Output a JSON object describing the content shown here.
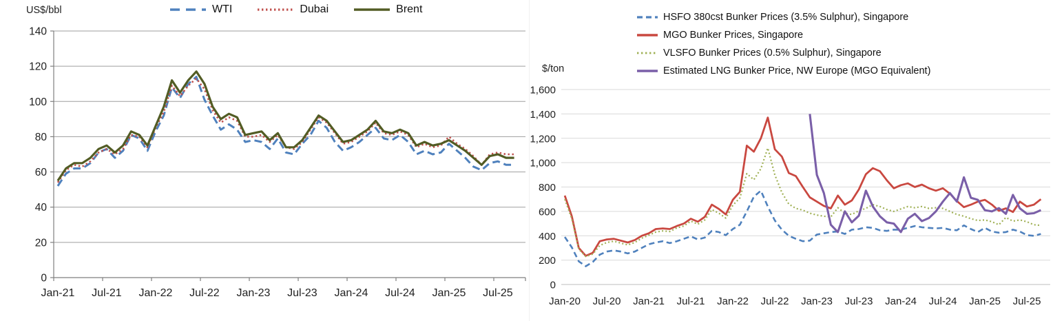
{
  "left_chart": {
    "y_axis_title": "US$/bbl",
    "legend_labels": [
      "WTI",
      "Dubai",
      "Brent"
    ]
  },
  "right_chart": {
    "y_axis_title": "$/ton",
    "legend_labels": [
      "HSFO 380cst Bunker Prices (3.5% Sulphur), Singapore",
      "MGO Bunker Prices, Singapore",
      "VLSFO Bunker Prices (0.5% Sulphur), Singapore",
      "Estimated LNG Bunker Price, NW Europe (MGO Equivalent)"
    ]
  },
  "chart_data": [
    {
      "type": "line",
      "title": "",
      "y_axis_title": "US$/bbl",
      "ylim": [
        0,
        140
      ],
      "y_tick_labels": [
        "0",
        "20",
        "40",
        "60",
        "80",
        "100",
        "120",
        "140"
      ],
      "x_tick_labels": [
        "Jan-21",
        "Jul-21",
        "Jan-22",
        "Jul-22",
        "Jan-23",
        "Jul-23",
        "Jan-24",
        "Jul-24",
        "Jan-25",
        "Jul-25"
      ],
      "x_start_month": "Jan-21",
      "x_end_month": "Sep-25",
      "grid": true,
      "legend_position": "top-center",
      "series": [
        {
          "name": "WTI",
          "color": "#4F81BD",
          "style": "dashed",
          "values": [
            52,
            59,
            62,
            62,
            65,
            71,
            73,
            68,
            72,
            81,
            79,
            72,
            83,
            92,
            108,
            102,
            110,
            114,
            101,
            92,
            84,
            87,
            84,
            77,
            78,
            77,
            73,
            79,
            71,
            70,
            76,
            81,
            89,
            85,
            77,
            72,
            74,
            77,
            81,
            85,
            79,
            78,
            81,
            77,
            70,
            72,
            70,
            71,
            76,
            72,
            68,
            63,
            61,
            65,
            66,
            64,
            64
          ]
        },
        {
          "name": "Dubai",
          "color": "#C0504D",
          "style": "dotted",
          "values": [
            54,
            61,
            64,
            63,
            66,
            71,
            73,
            70,
            73,
            81,
            80,
            74,
            85,
            94,
            109,
            103,
            109,
            113,
            107,
            95,
            88,
            91,
            89,
            80,
            80,
            81,
            77,
            81,
            74,
            73,
            77,
            84,
            91,
            88,
            82,
            76,
            77,
            80,
            83,
            88,
            82,
            81,
            83,
            81,
            74,
            76,
            74,
            75,
            80,
            76,
            73,
            69,
            64,
            70,
            71,
            70,
            70
          ]
        },
        {
          "name": "Brent",
          "color": "#525C24",
          "style": "solid",
          "values": [
            55,
            62,
            65,
            65,
            68,
            73,
            75,
            71,
            75,
            83,
            81,
            75,
            86,
            97,
            112,
            105,
            112,
            117,
            110,
            97,
            90,
            93,
            91,
            81,
            82,
            83,
            78,
            82,
            74,
            74,
            78,
            85,
            92,
            89,
            83,
            77,
            78,
            81,
            84,
            89,
            83,
            82,
            84,
            82,
            75,
            77,
            75,
            76,
            78,
            75,
            72,
            68,
            64,
            69,
            70,
            68,
            68
          ]
        }
      ]
    },
    {
      "type": "line",
      "title": "",
      "y_axis_title": "$/ton",
      "ylim": [
        0,
        1600
      ],
      "y_tick_labels": [
        "0",
        "200",
        "400",
        "600",
        "800",
        "1,000",
        "1,200",
        "1,400",
        "1,600"
      ],
      "x_tick_labels": [
        "Jan-20",
        "Jul-20",
        "Jan-21",
        "Jul-21",
        "Jan-22",
        "Jul-22",
        "Jan-23",
        "Jul-23",
        "Jan-24",
        "Jul-24",
        "Jan-25",
        "Jul-25"
      ],
      "x_start_month": "Jan-20",
      "x_end_month": "Sep-25",
      "grid": true,
      "legend_position": "top-right",
      "series": [
        {
          "name": "HSFO 380cst Bunker Prices (3.5% Sulphur), Singapore",
          "color": "#4F81BD",
          "style": "dashed",
          "values": [
            390,
            305,
            190,
            150,
            185,
            245,
            270,
            280,
            270,
            255,
            270,
            300,
            330,
            345,
            355,
            340,
            355,
            375,
            395,
            370,
            385,
            440,
            430,
            405,
            455,
            490,
            600,
            720,
            770,
            640,
            525,
            450,
            400,
            375,
            355,
            360,
            410,
            420,
            430,
            435,
            415,
            450,
            455,
            470,
            465,
            445,
            440,
            450,
            450,
            465,
            480,
            470,
            465,
            460,
            465,
            450,
            445,
            485,
            455,
            430,
            465,
            435,
            425,
            430,
            450,
            435,
            405,
            400,
            415
          ]
        },
        {
          "name": "MGO Bunker Prices, Singapore",
          "color": "#C94840",
          "style": "solid",
          "values": [
            730,
            560,
            300,
            235,
            260,
            355,
            370,
            375,
            360,
            345,
            365,
            400,
            420,
            455,
            460,
            455,
            480,
            500,
            540,
            515,
            555,
            655,
            620,
            575,
            695,
            760,
            1140,
            1090,
            1200,
            1370,
            1110,
            1050,
            915,
            890,
            800,
            715,
            680,
            645,
            625,
            730,
            655,
            690,
            780,
            905,
            955,
            930,
            855,
            790,
            815,
            830,
            800,
            820,
            790,
            770,
            790,
            745,
            685,
            635,
            655,
            680,
            695,
            655,
            605,
            625,
            595,
            680,
            640,
            655,
            700
          ]
        },
        {
          "name": "VLSFO Bunker Prices (0.5% Sulphur), Singapore",
          "color": "#9FB054",
          "style": "dotted",
          "values": [
            700,
            540,
            290,
            230,
            250,
            320,
            345,
            355,
            340,
            325,
            345,
            380,
            405,
            430,
            440,
            435,
            465,
            480,
            520,
            495,
            530,
            615,
            585,
            545,
            650,
            710,
            910,
            860,
            950,
            1120,
            900,
            755,
            660,
            625,
            610,
            585,
            570,
            560,
            555,
            630,
            585,
            575,
            605,
            625,
            655,
            640,
            615,
            600,
            620,
            640,
            630,
            640,
            625,
            630,
            625,
            600,
            575,
            560,
            540,
            525,
            530,
            515,
            490,
            550,
            520,
            530,
            515,
            490,
            485
          ]
        },
        {
          "name": "Estimated LNG Bunker Price, NW Europe (MGO Equivalent)",
          "color": "#7A5FA8",
          "style": "solid",
          "values": [
            null,
            null,
            null,
            null,
            null,
            null,
            null,
            null,
            null,
            null,
            null,
            null,
            null,
            null,
            null,
            null,
            null,
            null,
            null,
            null,
            null,
            null,
            null,
            null,
            null,
            null,
            null,
            null,
            null,
            null,
            null,
            null,
            null,
            null,
            null,
            1400,
            900,
            750,
            490,
            430,
            600,
            510,
            565,
            770,
            640,
            560,
            510,
            500,
            430,
            540,
            580,
            520,
            545,
            600,
            680,
            750,
            680,
            880,
            712,
            695,
            610,
            600,
            627,
            580,
            735,
            625,
            580,
            585,
            610
          ]
        }
      ]
    }
  ]
}
